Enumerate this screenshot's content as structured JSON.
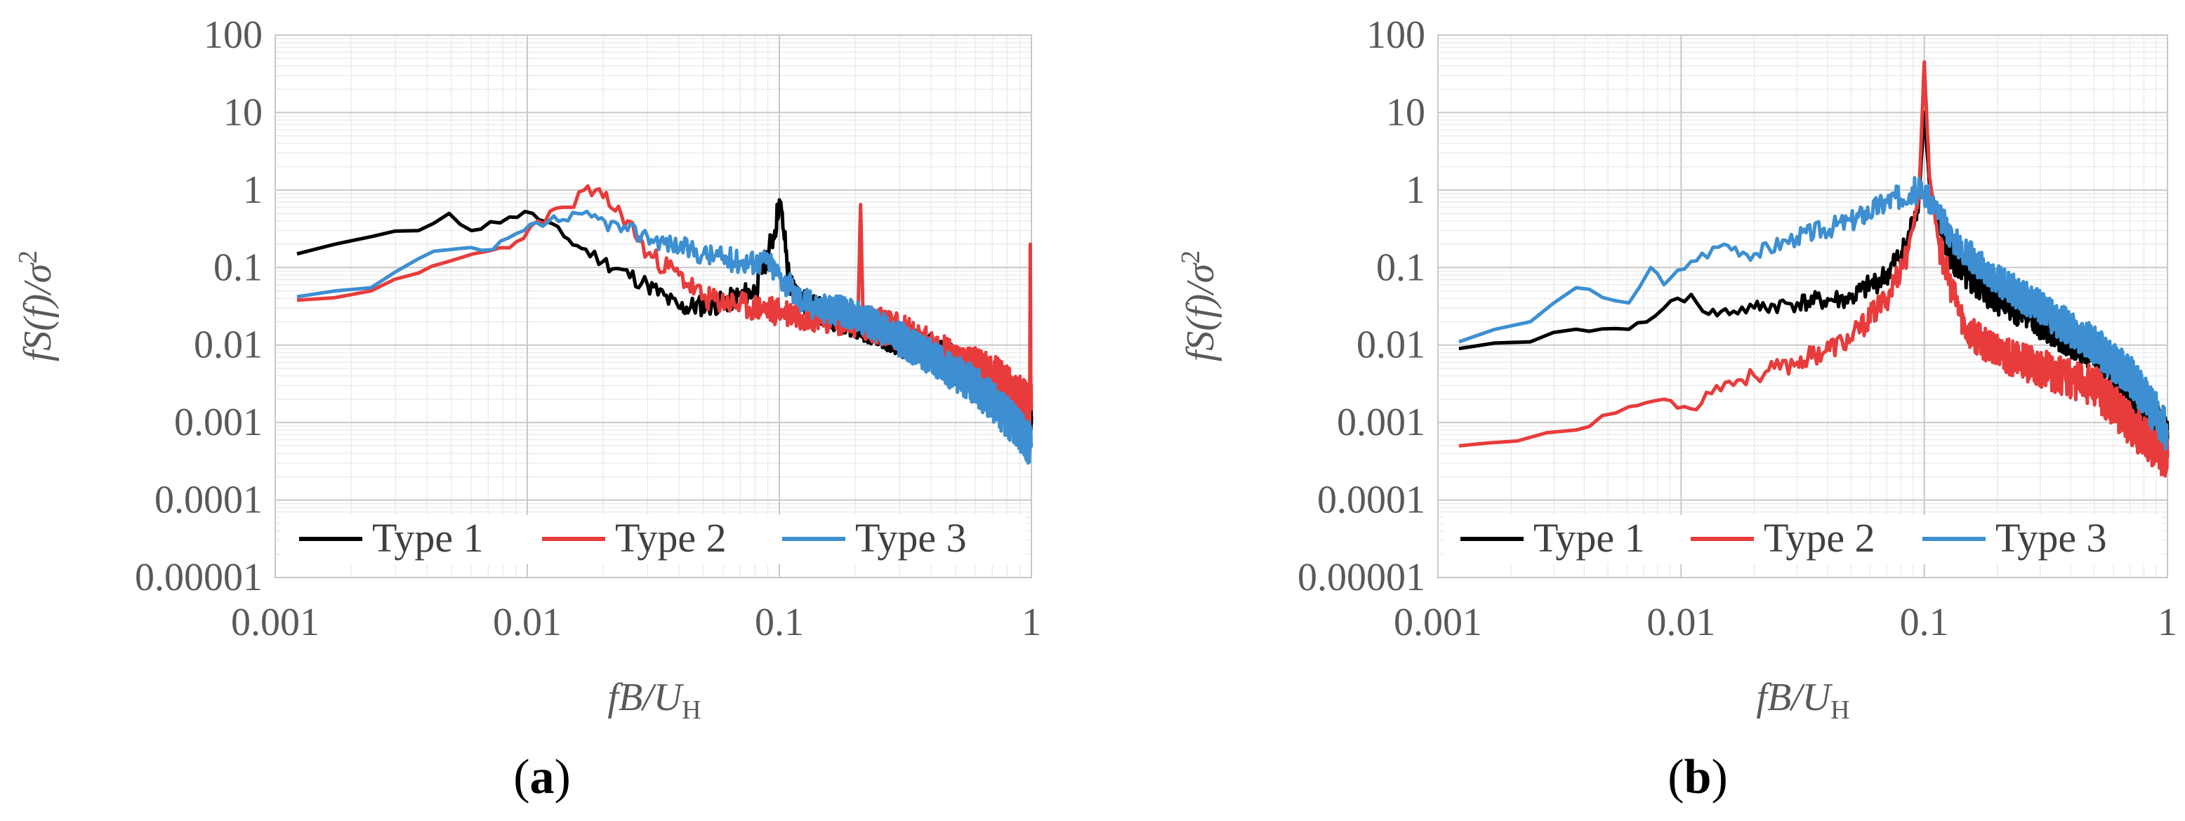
{
  "chart_data": [
    {
      "type": "line",
      "panel": "(a)",
      "panel_letter": "a",
      "xlabel": "fB/U_H",
      "xlabel_parts": {
        "main": "fB/U",
        "sub": "H"
      },
      "ylabel": "fS(f)/σ²",
      "ylabel_parts": {
        "main": "fS(f)/σ",
        "sup": "2"
      },
      "x_scale": "log",
      "y_scale": "log",
      "xlim": [
        0.001,
        1
      ],
      "ylim": [
        1e-05,
        100
      ],
      "x_ticks": [
        "0.001",
        "0.01",
        "0.1",
        "1"
      ],
      "y_ticks": [
        "100",
        "10",
        "1",
        "0.1",
        "0.01",
        "0.001",
        "0.0001",
        "0.00001"
      ],
      "grid": true,
      "legend_position": "bottom",
      "series": [
        {
          "name": "Type 1",
          "color": "#000000",
          "noise": 0.12,
          "seed": 11,
          "points": [
            [
              0.00122,
              0.15
            ],
            [
              0.0024,
              0.25
            ],
            [
              0.0037,
              0.3
            ],
            [
              0.0049,
              0.5
            ],
            [
              0.006,
              0.3
            ],
            [
              0.0085,
              0.45
            ],
            [
              0.0105,
              0.5
            ],
            [
              0.014,
              0.25
            ],
            [
              0.02,
              0.12
            ],
            [
              0.03,
              0.06
            ],
            [
              0.04,
              0.03
            ],
            [
              0.06,
              0.035
            ],
            [
              0.08,
              0.05
            ],
            [
              0.09,
              0.15
            ],
            [
              0.096,
              0.3
            ],
            [
              0.1,
              0.75
            ],
            [
              0.104,
              0.3
            ],
            [
              0.11,
              0.06
            ],
            [
              0.13,
              0.03
            ],
            [
              0.2,
              0.02
            ],
            [
              0.3,
              0.012
            ],
            [
              0.4,
              0.008
            ],
            [
              0.6,
              0.004
            ],
            [
              0.8,
              0.002
            ],
            [
              1.0,
              0.0012
            ]
          ]
        },
        {
          "name": "Type 2",
          "color": "#e83c3c",
          "noise": 0.13,
          "seed": 23,
          "points": [
            [
              0.00122,
              0.038
            ],
            [
              0.0024,
              0.05
            ],
            [
              0.0037,
              0.085
            ],
            [
              0.0061,
              0.15
            ],
            [
              0.0085,
              0.18
            ],
            [
              0.011,
              0.4
            ],
            [
              0.0146,
              0.6
            ],
            [
              0.0168,
              1.0
            ],
            [
              0.02,
              0.8
            ],
            [
              0.025,
              0.4
            ],
            [
              0.03,
              0.15
            ],
            [
              0.04,
              0.08
            ],
            [
              0.05,
              0.04
            ],
            [
              0.08,
              0.03
            ],
            [
              0.12,
              0.025
            ],
            [
              0.18,
              0.022
            ],
            [
              0.205,
              0.02
            ],
            [
              0.21,
              0.65
            ],
            [
              0.215,
              0.02
            ],
            [
              0.3,
              0.015
            ],
            [
              0.5,
              0.006
            ],
            [
              0.7,
              0.004
            ],
            [
              0.9,
              0.002
            ],
            [
              0.985,
              0.0015
            ],
            [
              0.99,
              0.2
            ],
            [
              0.995,
              0.002
            ],
            [
              1.0,
              0.0015
            ]
          ]
        },
        {
          "name": "Type 3",
          "color": "#3d8fd1",
          "noise": 0.12,
          "seed": 37,
          "points": [
            [
              0.00122,
              0.042
            ],
            [
              0.0024,
              0.055
            ],
            [
              0.0037,
              0.13
            ],
            [
              0.0049,
              0.17
            ],
            [
              0.0073,
              0.17
            ],
            [
              0.0097,
              0.3
            ],
            [
              0.0122,
              0.4
            ],
            [
              0.018,
              0.45
            ],
            [
              0.025,
              0.3
            ],
            [
              0.03,
              0.25
            ],
            [
              0.05,
              0.15
            ],
            [
              0.07,
              0.12
            ],
            [
              0.09,
              0.12
            ],
            [
              0.1,
              0.08
            ],
            [
              0.12,
              0.04
            ],
            [
              0.15,
              0.03
            ],
            [
              0.2,
              0.025
            ],
            [
              0.3,
              0.012
            ],
            [
              0.4,
              0.007
            ],
            [
              0.6,
              0.003
            ],
            [
              0.8,
              0.0012
            ],
            [
              1.0,
              0.0005
            ]
          ]
        }
      ]
    },
    {
      "type": "line",
      "panel": "(b)",
      "panel_letter": "b",
      "xlabel": "fB/U_H",
      "xlabel_parts": {
        "main": "fB/U",
        "sub": "H"
      },
      "ylabel": "fS(f)/σ²",
      "ylabel_parts": {
        "main": "fS(f)/σ",
        "sup": "2"
      },
      "x_scale": "log",
      "y_scale": "log",
      "xlim": [
        0.001,
        1
      ],
      "ylim": [
        1e-05,
        100
      ],
      "x_ticks": [
        "0.001",
        "0.01",
        "0.1",
        "1"
      ],
      "y_ticks": [
        "100",
        "10",
        "1",
        "0.1",
        "0.01",
        "0.001",
        "0.0001",
        "0.00001"
      ],
      "grid": true,
      "legend_position": "bottom",
      "series": [
        {
          "name": "Type 1",
          "color": "#000000",
          "noise": 0.12,
          "seed": 41,
          "points": [
            [
              0.00122,
              0.009
            ],
            [
              0.0024,
              0.011
            ],
            [
              0.0037,
              0.016
            ],
            [
              0.0061,
              0.016
            ],
            [
              0.0085,
              0.03
            ],
            [
              0.011,
              0.045
            ],
            [
              0.013,
              0.025
            ],
            [
              0.02,
              0.03
            ],
            [
              0.03,
              0.035
            ],
            [
              0.05,
              0.04
            ],
            [
              0.07,
              0.08
            ],
            [
              0.085,
              0.2
            ],
            [
              0.095,
              0.8
            ],
            [
              0.1,
              10
            ],
            [
              0.105,
              1.2
            ],
            [
              0.12,
              0.2
            ],
            [
              0.15,
              0.07
            ],
            [
              0.2,
              0.04
            ],
            [
              0.3,
              0.02
            ],
            [
              0.5,
              0.008
            ],
            [
              0.7,
              0.003
            ],
            [
              1.0,
              0.0006
            ]
          ]
        },
        {
          "name": "Type 2",
          "color": "#e83c3c",
          "noise": 0.13,
          "seed": 53,
          "points": [
            [
              0.00122,
              0.0005
            ],
            [
              0.0037,
              0.0008
            ],
            [
              0.0061,
              0.0016
            ],
            [
              0.0085,
              0.002
            ],
            [
              0.011,
              0.0015
            ],
            [
              0.014,
              0.003
            ],
            [
              0.02,
              0.004
            ],
            [
              0.03,
              0.006
            ],
            [
              0.05,
              0.012
            ],
            [
              0.07,
              0.04
            ],
            [
              0.085,
              0.15
            ],
            [
              0.095,
              0.8
            ],
            [
              0.1,
              45
            ],
            [
              0.105,
              1.5
            ],
            [
              0.115,
              0.2
            ],
            [
              0.13,
              0.05
            ],
            [
              0.15,
              0.015
            ],
            [
              0.2,
              0.008
            ],
            [
              0.3,
              0.005
            ],
            [
              0.5,
              0.003
            ],
            [
              0.7,
              0.001
            ],
            [
              1.0,
              0.00035
            ]
          ]
        },
        {
          "name": "Type 3",
          "color": "#3d8fd1",
          "noise": 0.12,
          "seed": 67,
          "points": [
            [
              0.00122,
              0.011
            ],
            [
              0.0024,
              0.02
            ],
            [
              0.0037,
              0.055
            ],
            [
              0.0061,
              0.035
            ],
            [
              0.0075,
              0.1
            ],
            [
              0.0085,
              0.06
            ],
            [
              0.011,
              0.12
            ],
            [
              0.015,
              0.2
            ],
            [
              0.02,
              0.15
            ],
            [
              0.03,
              0.25
            ],
            [
              0.05,
              0.4
            ],
            [
              0.07,
              0.7
            ],
            [
              0.09,
              1.0
            ],
            [
              0.1,
              0.9
            ],
            [
              0.11,
              0.6
            ],
            [
              0.13,
              0.25
            ],
            [
              0.15,
              0.15
            ],
            [
              0.2,
              0.07
            ],
            [
              0.3,
              0.03
            ],
            [
              0.5,
              0.01
            ],
            [
              0.7,
              0.004
            ],
            [
              1.0,
              0.0008
            ]
          ]
        }
      ]
    }
  ]
}
